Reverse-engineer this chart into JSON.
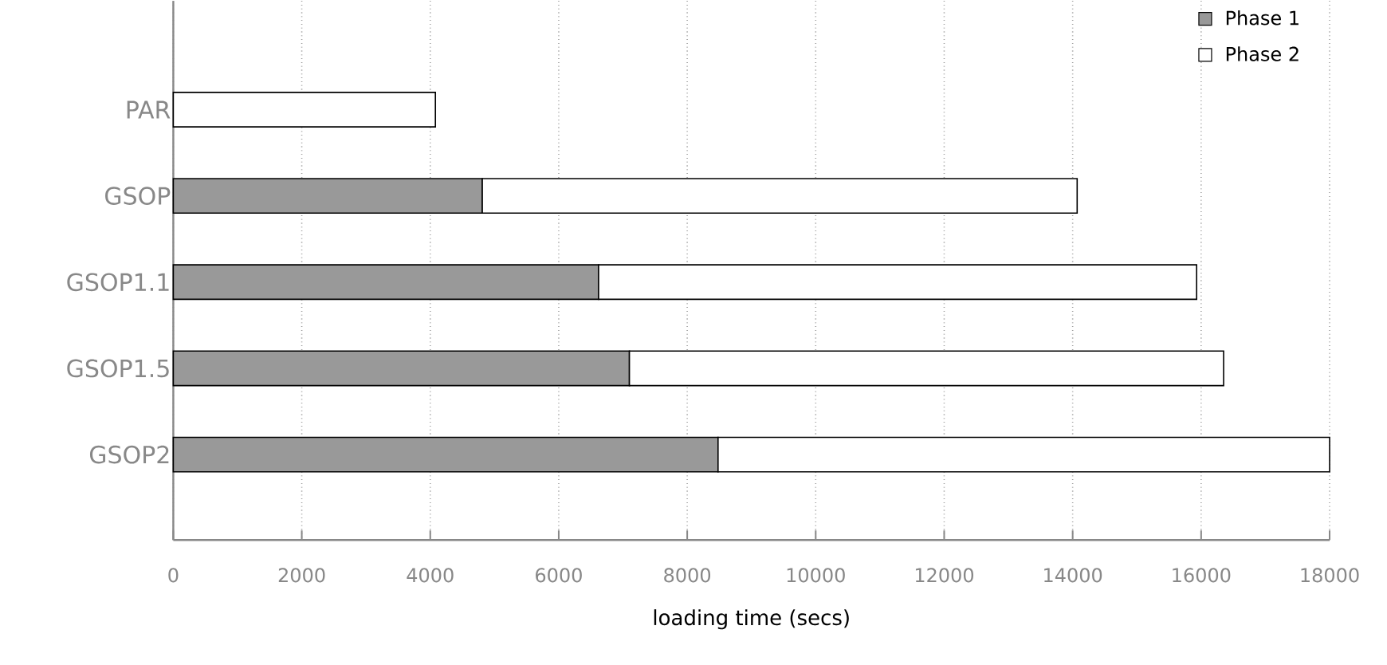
{
  "chart_data": {
    "type": "bar",
    "orientation": "horizontal",
    "stacked": true,
    "categories": [
      "PAR",
      "GSOP",
      "GSOP1.1",
      "GSOP1.5",
      "GSOP2"
    ],
    "series": [
      {
        "name": "Phase 1",
        "color": "#999999",
        "values": [
          null,
          4810,
          6620,
          7100,
          8480
        ]
      },
      {
        "name": "Phase 2",
        "color": "#ffffff",
        "values": [
          4080,
          9260,
          9310,
          9250,
          9520
        ]
      }
    ],
    "xlabel": "loading time (secs)",
    "xlim": [
      0,
      18000
    ],
    "xticks": [
      0,
      2000,
      4000,
      6000,
      8000,
      10000,
      12000,
      14000,
      16000,
      18000
    ],
    "grid": "x",
    "legend": "top right"
  }
}
